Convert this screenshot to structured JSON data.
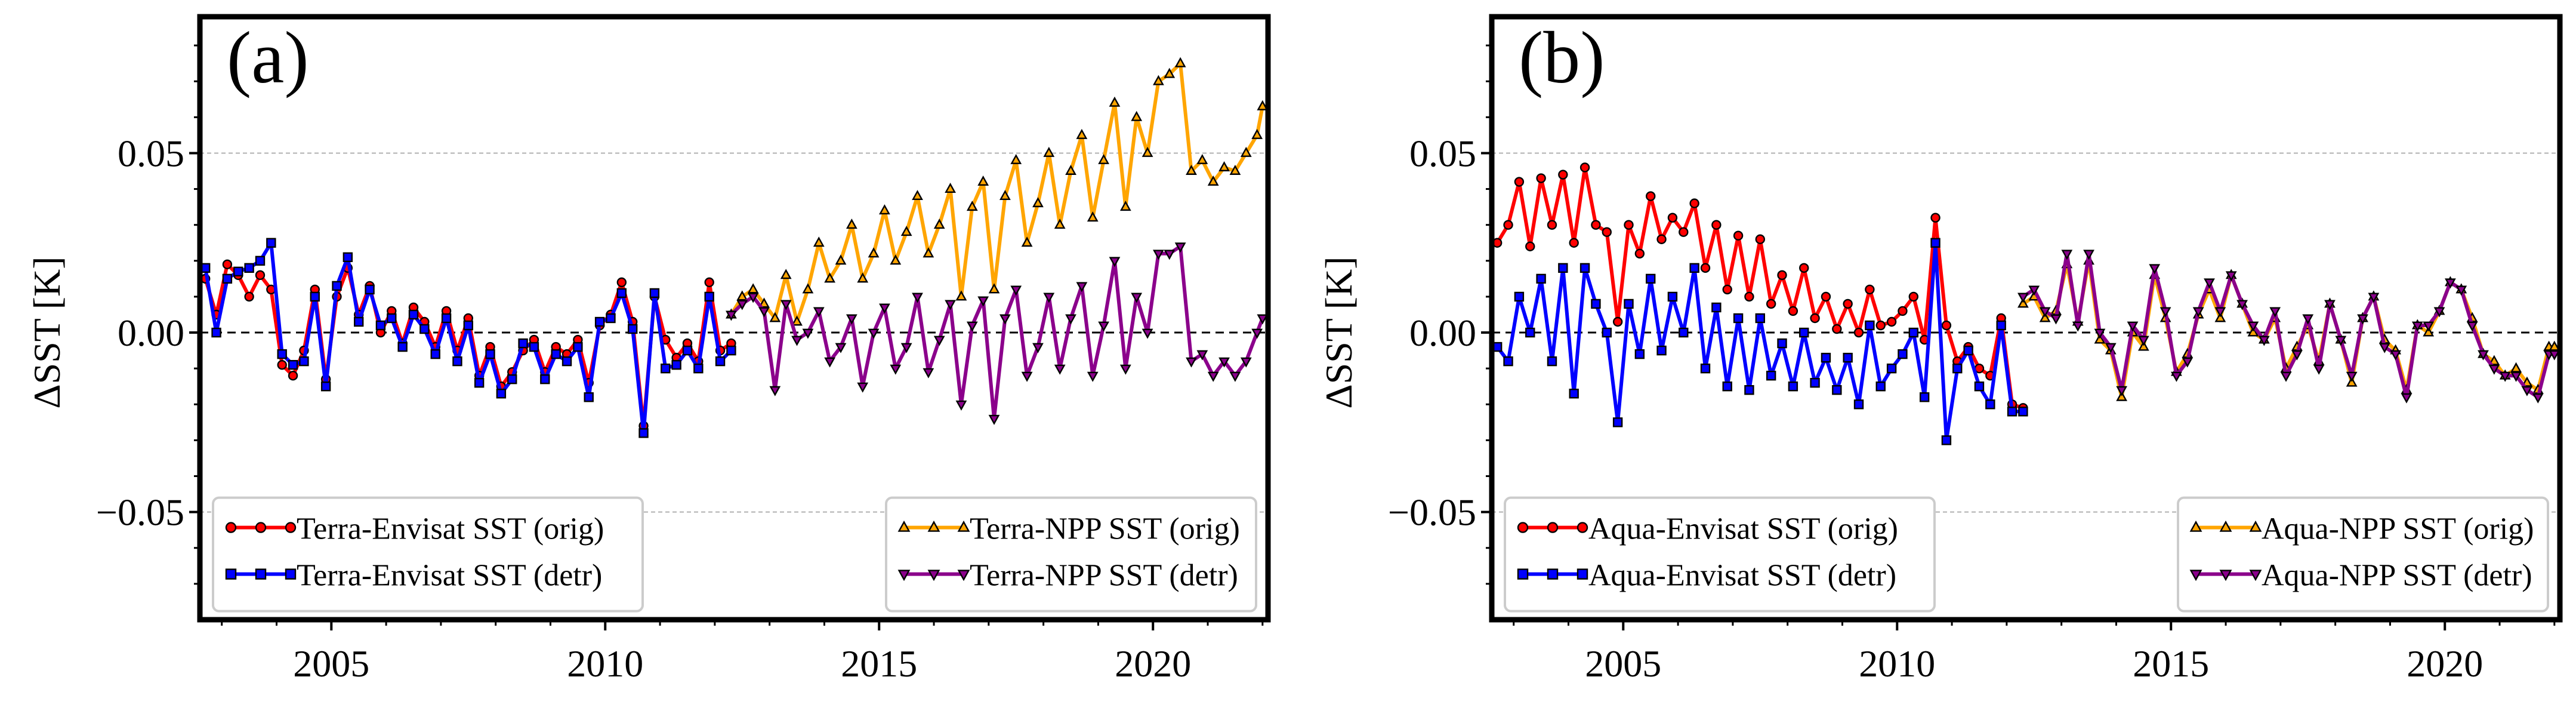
{
  "chart_data": [
    {
      "type": "line",
      "panel_label": "(a)",
      "xlabel": "",
      "ylabel": "ΔSST [K]",
      "xlim": [
        2002.6,
        2022.1
      ],
      "ylim": [
        -0.08,
        0.088
      ],
      "xticks": [
        2005,
        2010,
        2015,
        2020
      ],
      "xtick_labels": [
        "2005",
        "2010",
        "2015",
        "2020"
      ],
      "yticks": [
        -0.05,
        0.0,
        0.05
      ],
      "ytick_labels": [
        "−0.05",
        "0.00",
        "0.05"
      ],
      "grid": "horizontal dashed at y ticks",
      "zero_line": "dashed black",
      "legends": [
        {
          "placement": "lower-left",
          "entries": [
            "Terra-Envisat SST (orig)",
            "Terra-Envisat SST (detr)"
          ]
        },
        {
          "placement": "lower-right",
          "entries": [
            "Terra-NPP SST (orig)",
            "Terra-NPP SST (detr)"
          ]
        }
      ],
      "series": [
        {
          "name": "Terra-Envisat SST (orig)",
          "color": "#ff0000",
          "marker": "circle",
          "legend": 0,
          "x": [
            2002.7,
            2002.9,
            2003.1,
            2003.3,
            2003.5,
            2003.7,
            2003.9,
            2004.1,
            2004.3,
            2004.5,
            2004.7,
            2004.9,
            2005.1,
            2005.3,
            2005.5,
            2005.7,
            2005.9,
            2006.1,
            2006.3,
            2006.5,
            2006.7,
            2006.9,
            2007.1,
            2007.3,
            2007.5,
            2007.7,
            2007.9,
            2008.1,
            2008.3,
            2008.5,
            2008.7,
            2008.9,
            2009.1,
            2009.3,
            2009.5,
            2009.7,
            2009.9,
            2010.1,
            2010.3,
            2010.5,
            2010.7,
            2010.9,
            2011.1,
            2011.3,
            2011.5,
            2011.7,
            2011.9,
            2012.1,
            2012.3
          ],
          "values": [
            0.015,
            0.005,
            0.019,
            0.016,
            0.01,
            0.016,
            0.012,
            -0.009,
            -0.012,
            -0.005,
            0.012,
            -0.013,
            0.01,
            0.018,
            0.005,
            0.013,
            0.0,
            0.006,
            -0.003,
            0.007,
            0.003,
            -0.004,
            0.006,
            -0.005,
            0.004,
            -0.012,
            -0.004,
            -0.015,
            -0.011,
            -0.005,
            -0.002,
            -0.011,
            -0.004,
            -0.006,
            -0.002,
            -0.014,
            0.002,
            0.005,
            0.014,
            0.003,
            -0.026,
            0.01,
            -0.002,
            -0.007,
            -0.003,
            -0.008,
            0.014,
            -0.005,
            -0.003
          ]
        },
        {
          "name": "Terra-Envisat SST (detr)",
          "color": "#0000ff",
          "marker": "square",
          "legend": 0,
          "x": [
            2002.7,
            2002.9,
            2003.1,
            2003.3,
            2003.5,
            2003.7,
            2003.9,
            2004.1,
            2004.3,
            2004.5,
            2004.7,
            2004.9,
            2005.1,
            2005.3,
            2005.5,
            2005.7,
            2005.9,
            2006.1,
            2006.3,
            2006.5,
            2006.7,
            2006.9,
            2007.1,
            2007.3,
            2007.5,
            2007.7,
            2007.9,
            2008.1,
            2008.3,
            2008.5,
            2008.7,
            2008.9,
            2009.1,
            2009.3,
            2009.5,
            2009.7,
            2009.9,
            2010.1,
            2010.3,
            2010.5,
            2010.7,
            2010.9,
            2011.1,
            2011.3,
            2011.5,
            2011.7,
            2011.9,
            2012.1,
            2012.3
          ],
          "values": [
            0.018,
            0.0,
            0.015,
            0.017,
            0.018,
            0.02,
            0.025,
            -0.006,
            -0.009,
            -0.008,
            0.01,
            -0.015,
            0.013,
            0.021,
            0.003,
            0.012,
            0.002,
            0.004,
            -0.004,
            0.005,
            0.001,
            -0.006,
            0.004,
            -0.008,
            0.002,
            -0.014,
            -0.006,
            -0.017,
            -0.013,
            -0.003,
            -0.004,
            -0.013,
            -0.006,
            -0.008,
            -0.004,
            -0.018,
            0.003,
            0.004,
            0.011,
            0.001,
            -0.028,
            0.011,
            -0.01,
            -0.009,
            -0.005,
            -0.01,
            0.01,
            -0.008,
            -0.005
          ]
        },
        {
          "name": "Terra-NPP SST (orig)",
          "color": "#ffa500",
          "marker": "triangle-up",
          "legend": 1,
          "x": [
            2012.3,
            2012.5,
            2012.7,
            2012.9,
            2013.1,
            2013.3,
            2013.5,
            2013.7,
            2013.9,
            2014.1,
            2014.3,
            2014.5,
            2014.7,
            2014.9,
            2015.1,
            2015.3,
            2015.5,
            2015.7,
            2015.9,
            2016.1,
            2016.3,
            2016.5,
            2016.7,
            2016.9,
            2017.1,
            2017.3,
            2017.5,
            2017.7,
            2017.9,
            2018.1,
            2018.3,
            2018.5,
            2018.7,
            2018.9,
            2019.1,
            2019.3,
            2019.5,
            2019.7,
            2019.9,
            2020.1,
            2020.3,
            2020.5,
            2020.7,
            2020.9,
            2021.1,
            2021.3,
            2021.5,
            2021.7,
            2021.9,
            2022.0
          ],
          "values": [
            0.005,
            0.01,
            0.012,
            0.008,
            0.004,
            0.016,
            0.003,
            0.012,
            0.025,
            0.015,
            0.02,
            0.03,
            0.015,
            0.022,
            0.034,
            0.02,
            0.028,
            0.038,
            0.022,
            0.03,
            0.04,
            0.01,
            0.035,
            0.042,
            0.012,
            0.038,
            0.048,
            0.025,
            0.036,
            0.05,
            0.03,
            0.045,
            0.055,
            0.032,
            0.048,
            0.064,
            0.035,
            0.06,
            0.05,
            0.07,
            0.072,
            0.075,
            0.045,
            0.048,
            0.042,
            0.046,
            0.045,
            0.05,
            0.055,
            0.063
          ]
        },
        {
          "name": "Terra-NPP SST (detr)",
          "color": "#8b008b",
          "marker": "triangle-down",
          "legend": 1,
          "x": [
            2012.3,
            2012.5,
            2012.7,
            2012.9,
            2013.1,
            2013.3,
            2013.5,
            2013.7,
            2013.9,
            2014.1,
            2014.3,
            2014.5,
            2014.7,
            2014.9,
            2015.1,
            2015.3,
            2015.5,
            2015.7,
            2015.9,
            2016.1,
            2016.3,
            2016.5,
            2016.7,
            2016.9,
            2017.1,
            2017.3,
            2017.5,
            2017.7,
            2017.9,
            2018.1,
            2018.3,
            2018.5,
            2018.7,
            2018.9,
            2019.1,
            2019.3,
            2019.5,
            2019.7,
            2019.9,
            2020.1,
            2020.3,
            2020.5,
            2020.7,
            2020.9,
            2021.1,
            2021.3,
            2021.5,
            2021.7,
            2021.9,
            2022.0
          ],
          "values": [
            0.005,
            0.008,
            0.01,
            0.006,
            -0.016,
            0.008,
            -0.002,
            0.0,
            0.006,
            -0.008,
            -0.004,
            0.004,
            -0.015,
            0.0,
            0.007,
            -0.01,
            -0.004,
            0.01,
            -0.011,
            -0.002,
            0.008,
            -0.02,
            0.002,
            0.009,
            -0.024,
            0.004,
            0.012,
            -0.012,
            -0.004,
            0.01,
            -0.01,
            0.004,
            0.013,
            -0.012,
            0.002,
            0.02,
            -0.01,
            0.01,
            0.0,
            0.022,
            0.022,
            0.024,
            -0.008,
            -0.006,
            -0.012,
            -0.008,
            -0.012,
            -0.008,
            0.0,
            0.004
          ]
        }
      ]
    },
    {
      "type": "line",
      "panel_label": "(b)",
      "xlabel": "",
      "ylabel": "ΔSST [K]",
      "xlim": [
        2002.6,
        2022.1
      ],
      "ylim": [
        -0.08,
        0.088
      ],
      "xticks": [
        2005,
        2010,
        2015,
        2020
      ],
      "xtick_labels": [
        "2005",
        "2010",
        "2015",
        "2020"
      ],
      "yticks": [
        -0.05,
        0.0,
        0.05
      ],
      "ytick_labels": [
        "−0.05",
        "0.00",
        "0.05"
      ],
      "grid": "horizontal dashed at y ticks",
      "zero_line": "dashed black",
      "legends": [
        {
          "placement": "lower-left",
          "entries": [
            "Aqua-Envisat SST (orig)",
            "Aqua-Envisat SST (detr)"
          ]
        },
        {
          "placement": "lower-right",
          "entries": [
            "Aqua-NPP SST (orig)",
            "Aqua-NPP SST (detr)"
          ]
        }
      ],
      "series": [
        {
          "name": "Aqua-Envisat SST (orig)",
          "color": "#ff0000",
          "marker": "circle",
          "legend": 0,
          "x": [
            2002.7,
            2002.9,
            2003.1,
            2003.3,
            2003.5,
            2003.7,
            2003.9,
            2004.1,
            2004.3,
            2004.5,
            2004.7,
            2004.9,
            2005.1,
            2005.3,
            2005.5,
            2005.7,
            2005.9,
            2006.1,
            2006.3,
            2006.5,
            2006.7,
            2006.9,
            2007.1,
            2007.3,
            2007.5,
            2007.7,
            2007.9,
            2008.1,
            2008.3,
            2008.5,
            2008.7,
            2008.9,
            2009.1,
            2009.3,
            2009.5,
            2009.7,
            2009.9,
            2010.1,
            2010.3,
            2010.5,
            2010.7,
            2010.9,
            2011.1,
            2011.3,
            2011.5,
            2011.7,
            2011.9,
            2012.1,
            2012.3
          ],
          "values": [
            0.025,
            0.03,
            0.042,
            0.024,
            0.043,
            0.03,
            0.044,
            0.025,
            0.046,
            0.03,
            0.028,
            0.003,
            0.03,
            0.022,
            0.038,
            0.026,
            0.032,
            0.028,
            0.036,
            0.018,
            0.03,
            0.012,
            0.027,
            0.01,
            0.026,
            0.008,
            0.016,
            0.006,
            0.018,
            0.004,
            0.01,
            0.001,
            0.008,
            0.0,
            0.012,
            0.002,
            0.003,
            0.006,
            0.01,
            -0.002,
            0.032,
            0.002,
            -0.008,
            -0.004,
            -0.01,
            -0.012,
            0.004,
            -0.02,
            -0.021
          ]
        },
        {
          "name": "Aqua-Envisat SST (detr)",
          "color": "#0000ff",
          "marker": "square",
          "legend": 0,
          "x": [
            2002.7,
            2002.9,
            2003.1,
            2003.3,
            2003.5,
            2003.7,
            2003.9,
            2004.1,
            2004.3,
            2004.5,
            2004.7,
            2004.9,
            2005.1,
            2005.3,
            2005.5,
            2005.7,
            2005.9,
            2006.1,
            2006.3,
            2006.5,
            2006.7,
            2006.9,
            2007.1,
            2007.3,
            2007.5,
            2007.7,
            2007.9,
            2008.1,
            2008.3,
            2008.5,
            2008.7,
            2008.9,
            2009.1,
            2009.3,
            2009.5,
            2009.7,
            2009.9,
            2010.1,
            2010.3,
            2010.5,
            2010.7,
            2010.9,
            2011.1,
            2011.3,
            2011.5,
            2011.7,
            2011.9,
            2012.1,
            2012.3
          ],
          "values": [
            -0.004,
            -0.008,
            0.01,
            0.0,
            0.015,
            -0.008,
            0.018,
            -0.017,
            0.018,
            0.008,
            0.0,
            -0.025,
            0.008,
            -0.006,
            0.015,
            -0.005,
            0.01,
            0.0,
            0.018,
            -0.01,
            0.007,
            -0.015,
            0.004,
            -0.016,
            0.004,
            -0.012,
            -0.003,
            -0.015,
            0.0,
            -0.014,
            -0.007,
            -0.016,
            -0.007,
            -0.02,
            0.002,
            -0.015,
            -0.01,
            -0.006,
            0.0,
            -0.018,
            0.025,
            -0.03,
            -0.01,
            -0.005,
            -0.015,
            -0.02,
            0.002,
            -0.022,
            -0.022
          ]
        },
        {
          "name": "Aqua-NPP SST (orig)",
          "color": "#ffa500",
          "marker": "triangle-up",
          "legend": 1,
          "x": [
            2012.3,
            2012.5,
            2012.7,
            2012.9,
            2013.1,
            2013.3,
            2013.5,
            2013.7,
            2013.9,
            2014.1,
            2014.3,
            2014.5,
            2014.7,
            2014.9,
            2015.1,
            2015.3,
            2015.5,
            2015.7,
            2015.9,
            2016.1,
            2016.3,
            2016.5,
            2016.7,
            2016.9,
            2017.1,
            2017.3,
            2017.5,
            2017.7,
            2017.9,
            2018.1,
            2018.3,
            2018.5,
            2018.7,
            2018.9,
            2019.1,
            2019.3,
            2019.5,
            2019.7,
            2019.9,
            2020.1,
            2020.3,
            2020.5,
            2020.7,
            2020.9,
            2021.1,
            2021.3,
            2021.5,
            2021.7,
            2021.9,
            2022.0
          ],
          "values": [
            0.008,
            0.01,
            0.004,
            0.006,
            0.019,
            0.003,
            0.02,
            -0.002,
            -0.005,
            -0.018,
            0.0,
            -0.004,
            0.016,
            0.004,
            -0.011,
            -0.006,
            0.005,
            0.012,
            0.004,
            0.016,
            0.008,
            0.0,
            -0.002,
            0.004,
            -0.01,
            -0.004,
            0.002,
            -0.008,
            0.008,
            -0.002,
            -0.014,
            0.004,
            0.01,
            -0.002,
            -0.005,
            -0.016,
            0.002,
            0.0,
            0.006,
            0.014,
            0.012,
            0.004,
            -0.006,
            -0.008,
            -0.012,
            -0.01,
            -0.014,
            -0.016,
            -0.004,
            -0.004
          ]
        },
        {
          "name": "Aqua-NPP SST (detr)",
          "color": "#8b008b",
          "marker": "triangle-down",
          "legend": 1,
          "x": [
            2012.3,
            2012.5,
            2012.7,
            2012.9,
            2013.1,
            2013.3,
            2013.5,
            2013.7,
            2013.9,
            2014.1,
            2014.3,
            2014.5,
            2014.7,
            2014.9,
            2015.1,
            2015.3,
            2015.5,
            2015.7,
            2015.9,
            2016.1,
            2016.3,
            2016.5,
            2016.7,
            2016.9,
            2017.1,
            2017.3,
            2017.5,
            2017.7,
            2017.9,
            2018.1,
            2018.3,
            2018.5,
            2018.7,
            2018.9,
            2019.1,
            2019.3,
            2019.5,
            2019.7,
            2019.9,
            2020.1,
            2020.3,
            2020.5,
            2020.7,
            2020.9,
            2021.1,
            2021.3,
            2021.5,
            2021.7,
            2021.9,
            2022.0
          ],
          "values": [
            0.01,
            0.012,
            0.006,
            0.004,
            0.022,
            0.002,
            0.022,
            0.0,
            -0.004,
            -0.016,
            0.002,
            -0.002,
            0.018,
            0.006,
            -0.012,
            -0.008,
            0.006,
            0.014,
            0.006,
            0.016,
            0.008,
            0.002,
            -0.002,
            0.006,
            -0.012,
            -0.006,
            0.004,
            -0.01,
            0.008,
            -0.002,
            -0.012,
            0.004,
            0.01,
            -0.004,
            -0.006,
            -0.018,
            0.002,
            0.002,
            0.006,
            0.014,
            0.012,
            0.002,
            -0.006,
            -0.01,
            -0.012,
            -0.012,
            -0.016,
            -0.018,
            -0.006,
            -0.006
          ]
        }
      ]
    }
  ]
}
